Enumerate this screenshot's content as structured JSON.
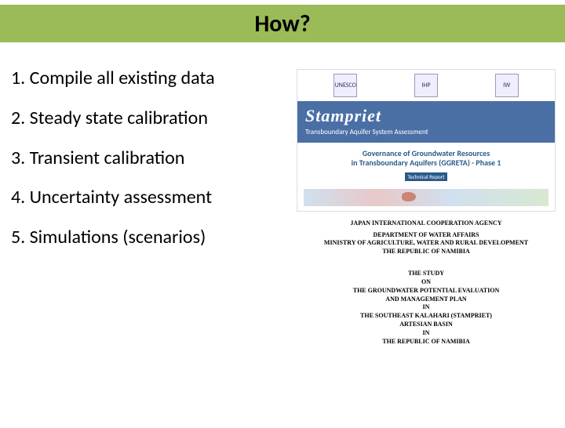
{
  "title": "How?",
  "colors": {
    "title_bar_bg": "#9bbb59",
    "title_text": "#000000",
    "list_text": "#000000",
    "doc1_bluebar": "#4a6fa5",
    "gov_text": "#2a5a8a"
  },
  "list": {
    "items": [
      "1. Compile all existing data",
      "2. Steady state calibration",
      "3. Transient calibration",
      "4. Uncertainty assessment",
      "5. Simulations (scenarios)"
    ]
  },
  "doc1": {
    "logos": [
      "UNESCO",
      "IHP",
      "IW"
    ],
    "stampriet_title": "Stampriet",
    "stampriet_sub": "Transboundary Aquifer System Assessment",
    "gov_line1": "Governance of Groundwater Resources",
    "gov_line2": "in Transboundary Aquifers (GGRETA) - Phase 1",
    "gov_badge": "Technical Report"
  },
  "doc2": {
    "agency": "JAPAN INTERNATIONAL COOPERATION AGENCY",
    "dept_line1": "DEPARTMENT OF WATER AFFAIRS",
    "dept_line2": "MINISTRY OF AGRICULTURE, WATER AND RURAL DEVELOPMENT",
    "dept_line3": "THE REPUBLIC OF NAMIBIA",
    "study_l1": "THE STUDY",
    "study_l2": "ON",
    "study_l3": "THE GROUNDWATER POTENTIAL EVALUATION",
    "study_l4": "AND MANAGEMENT PLAN",
    "study_l5": "IN",
    "study_l6": "THE SOUTHEAST KALAHARI (STAMPRIET)",
    "study_l7": "ARTESIAN BASIN",
    "study_l8": "IN",
    "study_l9": "THE REPUBLIC OF NAMIBIA"
  }
}
